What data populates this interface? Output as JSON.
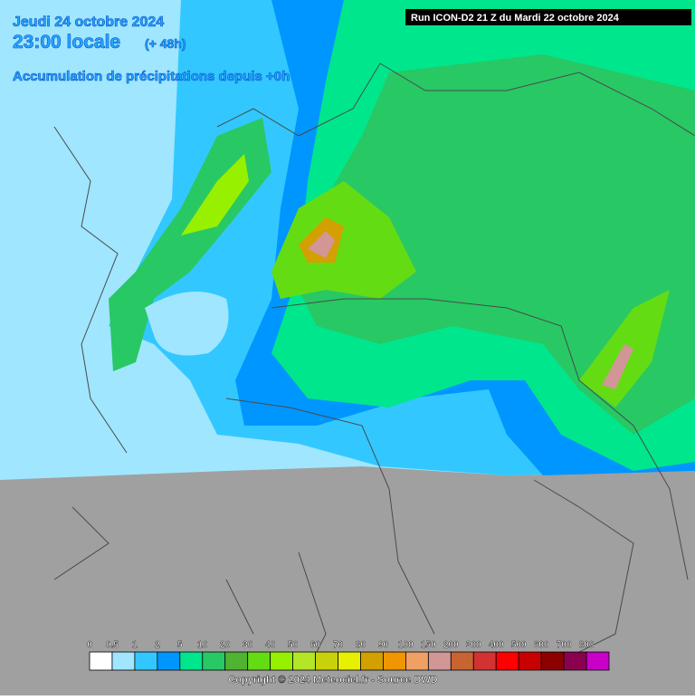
{
  "header": {
    "date": "Jeudi 24 octobre 2024",
    "time": "23:00 locale",
    "offset": "(+ 48h)",
    "subtitle": "Accumulation de précipitations depuis +0h",
    "run": "Run ICON-D2 21 Z du Mardi 22 octobre 2024"
  },
  "legend": {
    "ticks": [
      0,
      0.5,
      1,
      2,
      5,
      10,
      20,
      30,
      40,
      50,
      60,
      70,
      80,
      90,
      100,
      150,
      200,
      300,
      400,
      500,
      600,
      700,
      800
    ],
    "colors": [
      "#ffffff",
      "#a0e6ff",
      "#32c8ff",
      "#0096ff",
      "#00e68c",
      "#28c864",
      "#50b432",
      "#64dc14",
      "#96f000",
      "#b4e628",
      "#c8d20a",
      "#e6f000",
      "#d2a000",
      "#f09600",
      "#f0a064",
      "#d29696",
      "#c86432",
      "#d23232",
      "#ff0000",
      "#c80000",
      "#8c0000",
      "#8c0050",
      "#c800c8"
    ]
  },
  "footer": {
    "copyright": "Copyright © 2024 Meteociel.fr - Source DWD"
  }
}
